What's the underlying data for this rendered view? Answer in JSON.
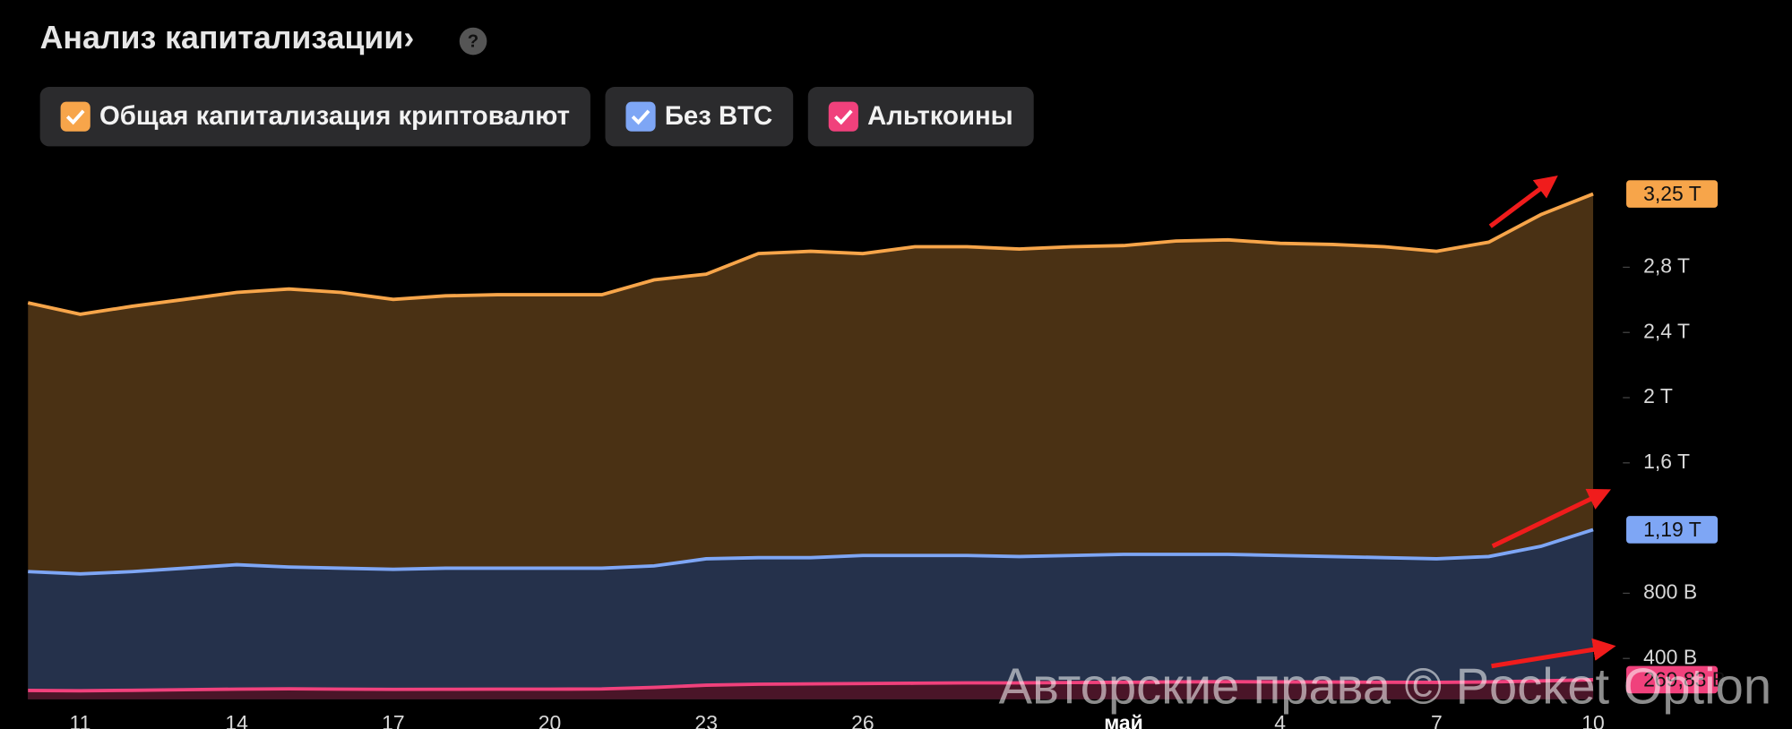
{
  "chart_data": {
    "type": "area",
    "title": "Анализ капитализации›",
    "categories": [
      null,
      "11",
      null,
      null,
      "14",
      null,
      null,
      "17",
      null,
      null,
      "20",
      null,
      null,
      "23",
      null,
      null,
      "26",
      null,
      null,
      null,
      null,
      "май",
      null,
      null,
      "4",
      null,
      null,
      "7",
      null,
      null,
      "10"
    ],
    "series": [
      {
        "name": "Общая капитализация криптовалют",
        "color": "#f7a54a",
        "fill": "#4a3114",
        "values": [
          2582,
          2512,
          2561,
          2603,
          2646,
          2667,
          2646,
          2603,
          2625,
          2632,
          2632,
          2632,
          2723,
          2758,
          2884,
          2898,
          2884,
          2926,
          2926,
          2912,
          2926,
          2933,
          2961,
          2968,
          2947,
          2940,
          2926,
          2898,
          2954,
          3123,
          3250
        ],
        "value_labels": [
          null,
          null,
          null,
          null,
          null,
          null,
          null,
          null,
          null,
          null,
          null,
          null,
          null,
          null,
          null,
          null,
          null,
          null,
          null,
          null,
          null,
          null,
          null,
          null,
          null,
          null,
          null,
          null,
          null,
          null,
          "3,25 T"
        ]
      },
      {
        "name": "Без BTC",
        "color": "#7ea6f5",
        "fill": "#25314b",
        "values": [
          933,
          919,
          933,
          954,
          975,
          961,
          954,
          947,
          954,
          954,
          954,
          954,
          968,
          1011,
          1018,
          1018,
          1032,
          1032,
          1032,
          1025,
          1032,
          1039,
          1039,
          1039,
          1032,
          1025,
          1018,
          1011,
          1025,
          1088,
          1190
        ],
        "value_labels": [
          null,
          null,
          null,
          null,
          null,
          null,
          null,
          null,
          null,
          null,
          null,
          null,
          null,
          null,
          null,
          null,
          null,
          null,
          null,
          null,
          null,
          null,
          null,
          null,
          null,
          null,
          null,
          null,
          null,
          null,
          "1,19 T"
        ]
      },
      {
        "name": "Альткоины",
        "color": "#f0417c",
        "fill": "#4a1528",
        "values": [
          204,
          202,
          205,
          208,
          212,
          214,
          212,
          210,
          211,
          212,
          212,
          213,
          222,
          236,
          242,
          244,
          246,
          248,
          250,
          250,
          252,
          254,
          256,
          257,
          256,
          255,
          254,
          253,
          256,
          262,
          269.83
        ],
        "value_labels": [
          null,
          null,
          null,
          null,
          null,
          null,
          null,
          null,
          null,
          null,
          null,
          null,
          null,
          null,
          null,
          null,
          null,
          null,
          null,
          null,
          null,
          null,
          null,
          null,
          null,
          null,
          null,
          null,
          null,
          null,
          "269,83 B"
        ]
      }
    ],
    "ylim": [
      150,
      3500
    ],
    "yticks": [
      {
        "value": 400,
        "label": "400 B"
      },
      {
        "value": 800,
        "label": "800 B"
      },
      {
        "value": 1600,
        "label": "1,6 T"
      },
      {
        "value": 2000,
        "label": "2 T"
      },
      {
        "value": 2400,
        "label": "2,4 T"
      },
      {
        "value": 2800,
        "label": "2,8 T"
      }
    ],
    "watermark": "Авторские права © Pocket Option"
  }
}
